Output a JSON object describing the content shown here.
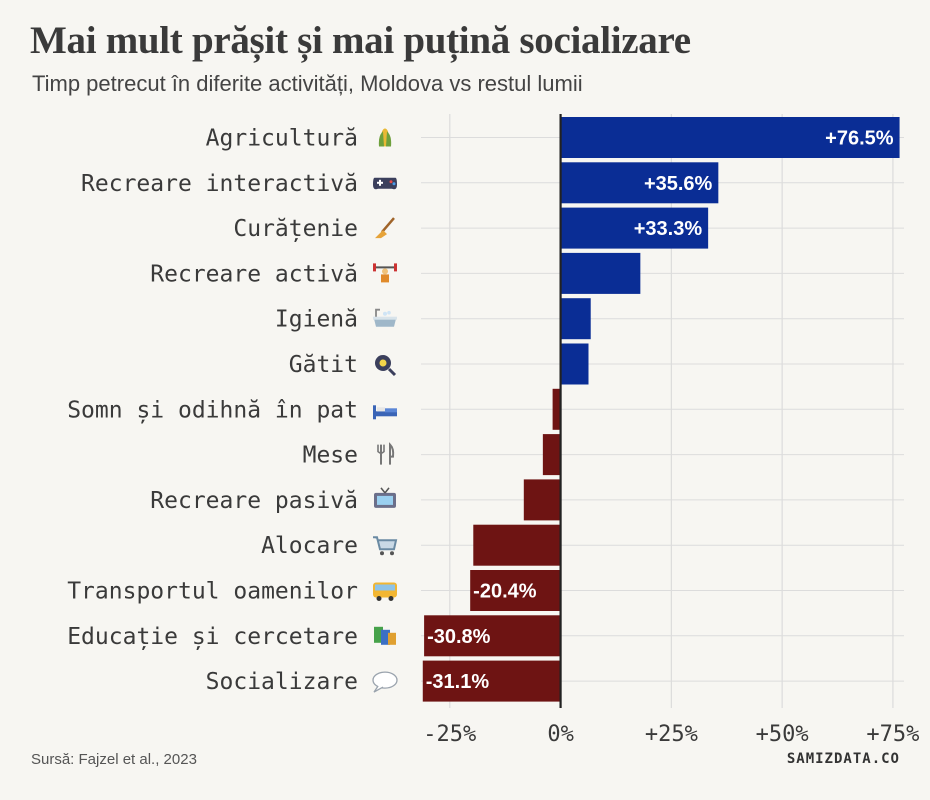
{
  "title": "Mai mult prășit și mai puțină socializare",
  "subtitle": "Timp petrecut în diferite activități, Moldova vs restul lumii",
  "source": "Sursă: Fajzel et al., 2023",
  "brand": "SAMIZDATA.CO",
  "colors": {
    "positive": "#0a2d95",
    "negative": "#6e1413",
    "grid": "#dcdcdc",
    "zero_line": "#222222"
  },
  "chart_data": {
    "type": "bar",
    "orientation": "horizontal",
    "title": "Mai mult prășit și mai puțină socializare",
    "subtitle": "Timp petrecut în diferite activități, Moldova vs restul lumii",
    "categories": [
      "Agricultură",
      "Recreare interactivă",
      "Curățenie",
      "Recreare activă",
      "Igienă",
      "Gătit",
      "Somn și odihnă în pat",
      "Mese",
      "Recreare pasivă",
      "Alocare",
      "Transportul oamenilor",
      "Educație și cercetare",
      "Socializare"
    ],
    "icons": [
      "corn-icon",
      "gamepad-icon",
      "broom-icon",
      "weightlifter-icon",
      "bathtub-icon",
      "frying-pan-icon",
      "bed-icon",
      "cutlery-icon",
      "tv-icon",
      "shopping-cart-icon",
      "bus-icon",
      "books-icon",
      "speech-bubble-icon"
    ],
    "values": [
      76.5,
      35.6,
      33.3,
      18.0,
      6.8,
      6.3,
      -1.8,
      -4.0,
      -8.3,
      -19.7,
      -20.4,
      -30.8,
      -31.1
    ],
    "value_labels": [
      "+76.5%",
      "+35.6%",
      "+33.3%",
      "",
      "",
      "",
      "",
      "",
      "",
      "",
      "-20.4%",
      "-30.8%",
      "-31.1%"
    ],
    "xlim": [
      -31.5,
      77.5
    ],
    "xticks": [
      -25,
      0,
      25,
      50,
      75
    ],
    "xtick_labels": [
      "-25%",
      "0%",
      "+25%",
      "+50%",
      "+75%"
    ],
    "grid": true
  }
}
